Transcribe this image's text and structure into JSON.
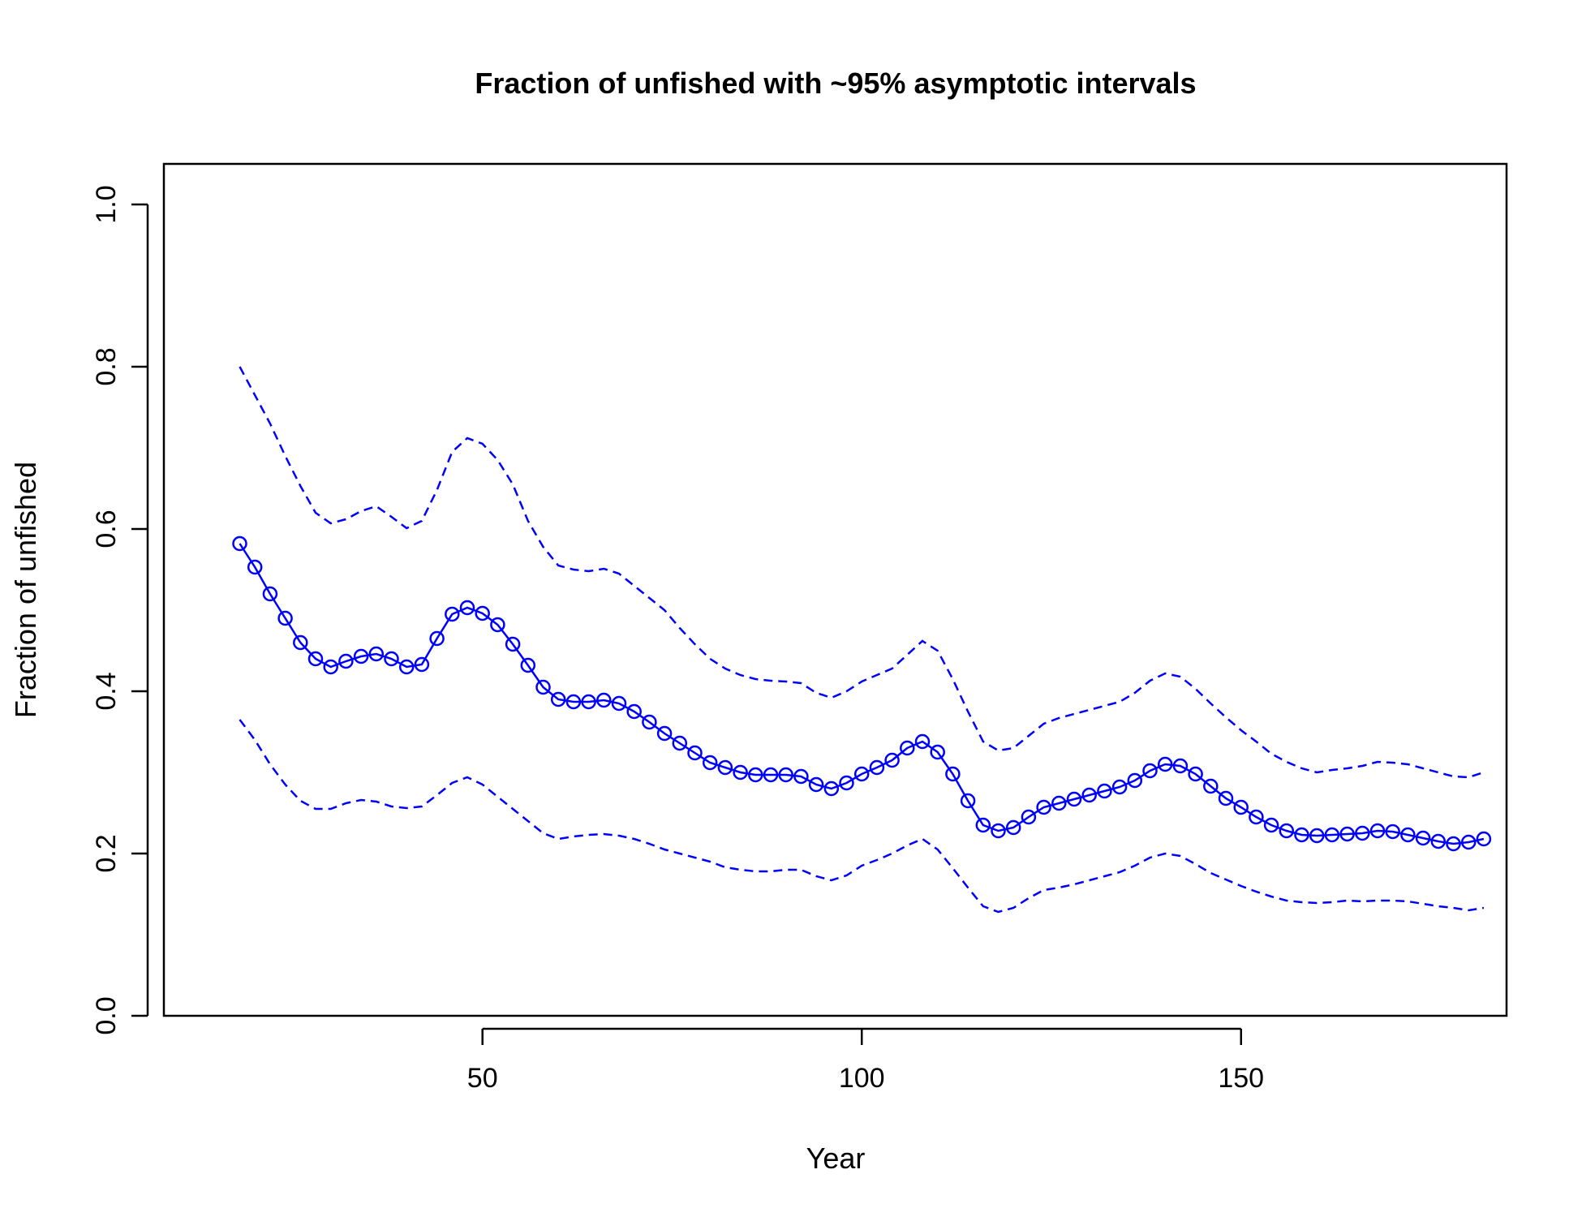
{
  "chart_data": {
    "type": "line",
    "title": "Fraction of unfished with ~95% asymptotic intervals",
    "xlabel": "Year",
    "ylabel": "Fraction of unfished",
    "xlim": [
      8,
      185
    ],
    "ylim": [
      0,
      1.05
    ],
    "x_ticks": [
      50,
      100,
      150
    ],
    "y_ticks": [
      0.0,
      0.2,
      0.4,
      0.6,
      0.8,
      1.0
    ],
    "x_tick_labels": [
      "50",
      "100",
      "150"
    ],
    "y_tick_labels": [
      "0.0",
      "0.2",
      "0.4",
      "0.6",
      "0.8",
      "1.0"
    ],
    "series_color": "#0000ff",
    "series": [
      {
        "role": "estimate",
        "style": "points-and-line",
        "x": [
          18,
          20,
          22,
          24,
          26,
          28,
          30,
          32,
          34,
          36,
          38,
          40,
          42,
          44,
          46,
          48,
          50,
          52,
          54,
          56,
          58,
          60,
          62,
          64,
          66,
          68,
          70,
          72,
          74,
          76,
          78,
          80,
          82,
          84,
          86,
          88,
          90,
          92,
          94,
          96,
          98,
          100,
          102,
          104,
          106,
          108,
          110,
          112,
          114,
          116,
          118,
          120,
          122,
          124,
          126,
          128,
          130,
          132,
          134,
          136,
          138,
          140,
          142,
          144,
          146,
          148,
          150,
          152,
          154,
          156,
          158,
          160,
          162,
          164,
          166,
          168,
          170,
          172,
          174,
          176,
          178,
          180,
          182
        ],
        "y": [
          0.582,
          0.553,
          0.52,
          0.49,
          0.46,
          0.44,
          0.43,
          0.437,
          0.443,
          0.446,
          0.44,
          0.43,
          0.433,
          0.465,
          0.495,
          0.503,
          0.496,
          0.482,
          0.458,
          0.432,
          0.405,
          0.39,
          0.387,
          0.387,
          0.389,
          0.385,
          0.375,
          0.362,
          0.348,
          0.336,
          0.324,
          0.312,
          0.306,
          0.3,
          0.297,
          0.297,
          0.297,
          0.295,
          0.285,
          0.28,
          0.287,
          0.298,
          0.306,
          0.315,
          0.33,
          0.338,
          0.325,
          0.298,
          0.265,
          0.235,
          0.228,
          0.232,
          0.245,
          0.257,
          0.262,
          0.267,
          0.272,
          0.277,
          0.282,
          0.29,
          0.302,
          0.31,
          0.308,
          0.298,
          0.283,
          0.268,
          0.257,
          0.245,
          0.235,
          0.228,
          0.223,
          0.222,
          0.223,
          0.224,
          0.225,
          0.228,
          0.227,
          0.223,
          0.219,
          0.215,
          0.212,
          0.214,
          0.218
        ]
      },
      {
        "role": "upper-95",
        "style": "dashed",
        "x": [
          18,
          20,
          22,
          24,
          26,
          28,
          30,
          32,
          34,
          36,
          38,
          40,
          42,
          44,
          46,
          48,
          50,
          52,
          54,
          56,
          58,
          60,
          62,
          64,
          66,
          68,
          70,
          72,
          74,
          76,
          78,
          80,
          82,
          84,
          86,
          88,
          90,
          92,
          94,
          96,
          98,
          100,
          102,
          104,
          106,
          108,
          110,
          112,
          114,
          116,
          118,
          120,
          122,
          124,
          126,
          128,
          130,
          132,
          134,
          136,
          138,
          140,
          142,
          144,
          146,
          148,
          150,
          152,
          154,
          156,
          158,
          160,
          162,
          164,
          166,
          168,
          170,
          172,
          174,
          176,
          178,
          180,
          182
        ],
        "y": [
          0.8,
          0.765,
          0.73,
          0.69,
          0.653,
          0.62,
          0.607,
          0.612,
          0.622,
          0.628,
          0.615,
          0.601,
          0.61,
          0.648,
          0.695,
          0.712,
          0.705,
          0.685,
          0.655,
          0.61,
          0.578,
          0.555,
          0.55,
          0.548,
          0.551,
          0.545,
          0.53,
          0.515,
          0.5,
          0.478,
          0.458,
          0.44,
          0.428,
          0.42,
          0.415,
          0.413,
          0.412,
          0.41,
          0.398,
          0.392,
          0.4,
          0.412,
          0.42,
          0.428,
          0.445,
          0.462,
          0.45,
          0.415,
          0.375,
          0.338,
          0.327,
          0.33,
          0.345,
          0.36,
          0.367,
          0.372,
          0.377,
          0.382,
          0.387,
          0.398,
          0.413,
          0.422,
          0.418,
          0.403,
          0.385,
          0.368,
          0.352,
          0.338,
          0.323,
          0.313,
          0.305,
          0.3,
          0.303,
          0.305,
          0.308,
          0.313,
          0.312,
          0.31,
          0.305,
          0.3,
          0.295,
          0.294,
          0.3
        ]
      },
      {
        "role": "lower-95",
        "style": "dashed",
        "x": [
          18,
          20,
          22,
          24,
          26,
          28,
          30,
          32,
          34,
          36,
          38,
          40,
          42,
          44,
          46,
          48,
          50,
          52,
          54,
          56,
          58,
          60,
          62,
          64,
          66,
          68,
          70,
          72,
          74,
          76,
          78,
          80,
          82,
          84,
          86,
          88,
          90,
          92,
          94,
          96,
          98,
          100,
          102,
          104,
          106,
          108,
          110,
          112,
          114,
          116,
          118,
          120,
          122,
          124,
          126,
          128,
          130,
          132,
          134,
          136,
          138,
          140,
          142,
          144,
          146,
          148,
          150,
          152,
          154,
          156,
          158,
          160,
          162,
          164,
          166,
          168,
          170,
          172,
          174,
          176,
          178,
          180,
          182
        ],
        "y": [
          0.365,
          0.34,
          0.31,
          0.285,
          0.265,
          0.255,
          0.255,
          0.262,
          0.266,
          0.264,
          0.258,
          0.256,
          0.258,
          0.272,
          0.287,
          0.294,
          0.285,
          0.27,
          0.255,
          0.24,
          0.225,
          0.218,
          0.221,
          0.223,
          0.224,
          0.222,
          0.218,
          0.212,
          0.205,
          0.2,
          0.195,
          0.19,
          0.183,
          0.18,
          0.178,
          0.178,
          0.18,
          0.18,
          0.172,
          0.167,
          0.173,
          0.185,
          0.192,
          0.2,
          0.21,
          0.218,
          0.205,
          0.182,
          0.158,
          0.135,
          0.128,
          0.133,
          0.145,
          0.155,
          0.158,
          0.162,
          0.167,
          0.172,
          0.177,
          0.185,
          0.195,
          0.2,
          0.197,
          0.187,
          0.176,
          0.168,
          0.16,
          0.153,
          0.147,
          0.142,
          0.14,
          0.139,
          0.14,
          0.142,
          0.141,
          0.142,
          0.142,
          0.141,
          0.138,
          0.135,
          0.133,
          0.13,
          0.133
        ]
      }
    ]
  }
}
